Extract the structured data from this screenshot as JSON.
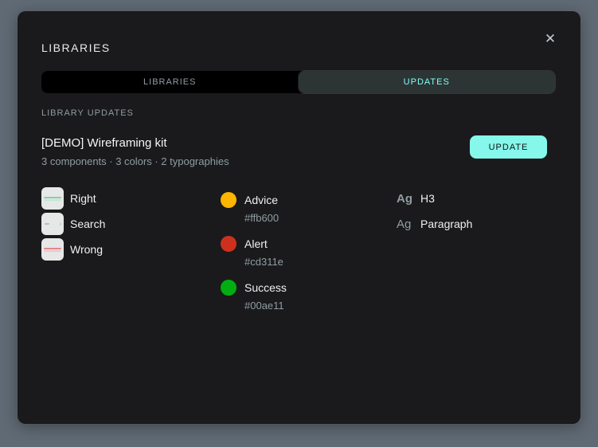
{
  "modal": {
    "title": "LIBRARIES",
    "close_icon": "✕",
    "background": "#1a1a1c",
    "accent": "#7efff5"
  },
  "tabs": [
    {
      "label": "LIBRARIES",
      "active": false
    },
    {
      "label": "UPDATES",
      "active": true
    }
  ],
  "section": {
    "label": "LIBRARY UPDATES"
  },
  "library": {
    "name": "[DEMO] Wireframing kit",
    "meta": "3 components · 3 colors · 2 typographies",
    "update_button": "UPDATE"
  },
  "components": [
    {
      "name": "Right"
    },
    {
      "name": "Search"
    },
    {
      "name": "Wrong"
    }
  ],
  "colors": [
    {
      "name": "Advice",
      "hex": "#ffb600"
    },
    {
      "name": "Alert",
      "hex": "#cd311e"
    },
    {
      "name": "Success",
      "hex": "#00ae11"
    }
  ],
  "typographies": [
    {
      "sample": "Ag",
      "name": "H3"
    },
    {
      "sample": "Ag",
      "name": "Paragraph"
    }
  ]
}
